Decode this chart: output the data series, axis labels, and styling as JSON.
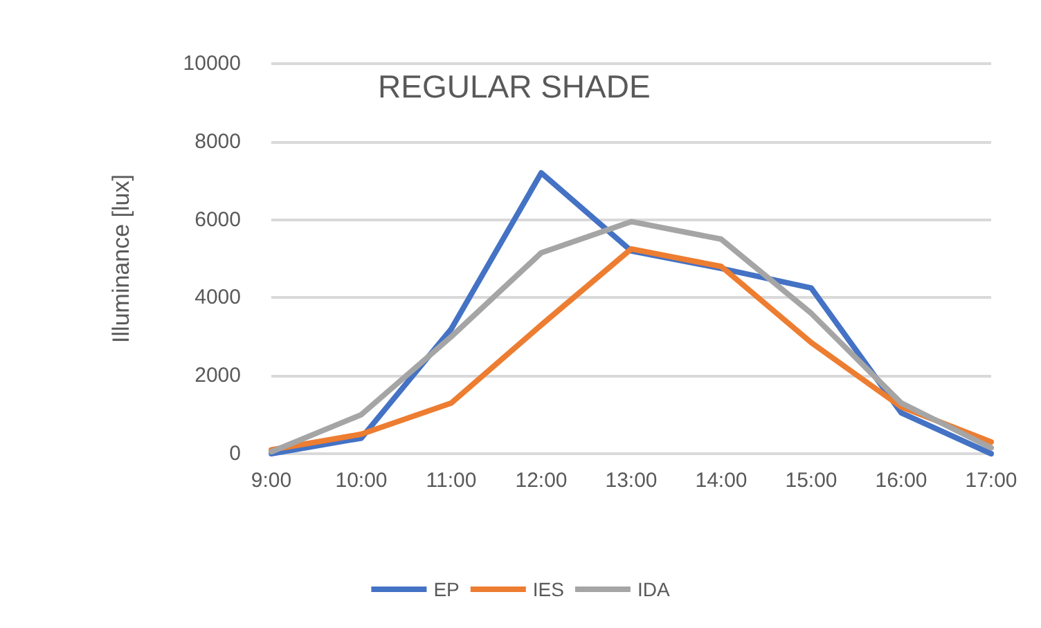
{
  "chart_data": {
    "type": "line",
    "title": "REGULAR SHADE",
    "ylabel": "Illuminance [lux]",
    "categories": [
      "9:00",
      "10:00",
      "11:00",
      "12:00",
      "13:00",
      "14:00",
      "15:00",
      "16:00",
      "17:00"
    ],
    "series": [
      {
        "name": "EP",
        "color": "#4472c4",
        "values": [
          0,
          400,
          3200,
          7200,
          5200,
          4750,
          4250,
          1050,
          0
        ]
      },
      {
        "name": "IES",
        "color": "#ed7d31",
        "values": [
          100,
          500,
          1300,
          3300,
          5250,
          4800,
          2850,
          1200,
          300
        ]
      },
      {
        "name": "IDA",
        "color": "#a5a5a5",
        "values": [
          50,
          1000,
          3000,
          5150,
          5950,
          5500,
          3600,
          1300,
          150
        ]
      }
    ],
    "ylim": [
      0,
      10000
    ],
    "yticks": [
      0,
      2000,
      4000,
      6000,
      8000,
      10000
    ],
    "grid": "y",
    "legend": "bottom",
    "marker": "none",
    "line_style": "solid"
  }
}
